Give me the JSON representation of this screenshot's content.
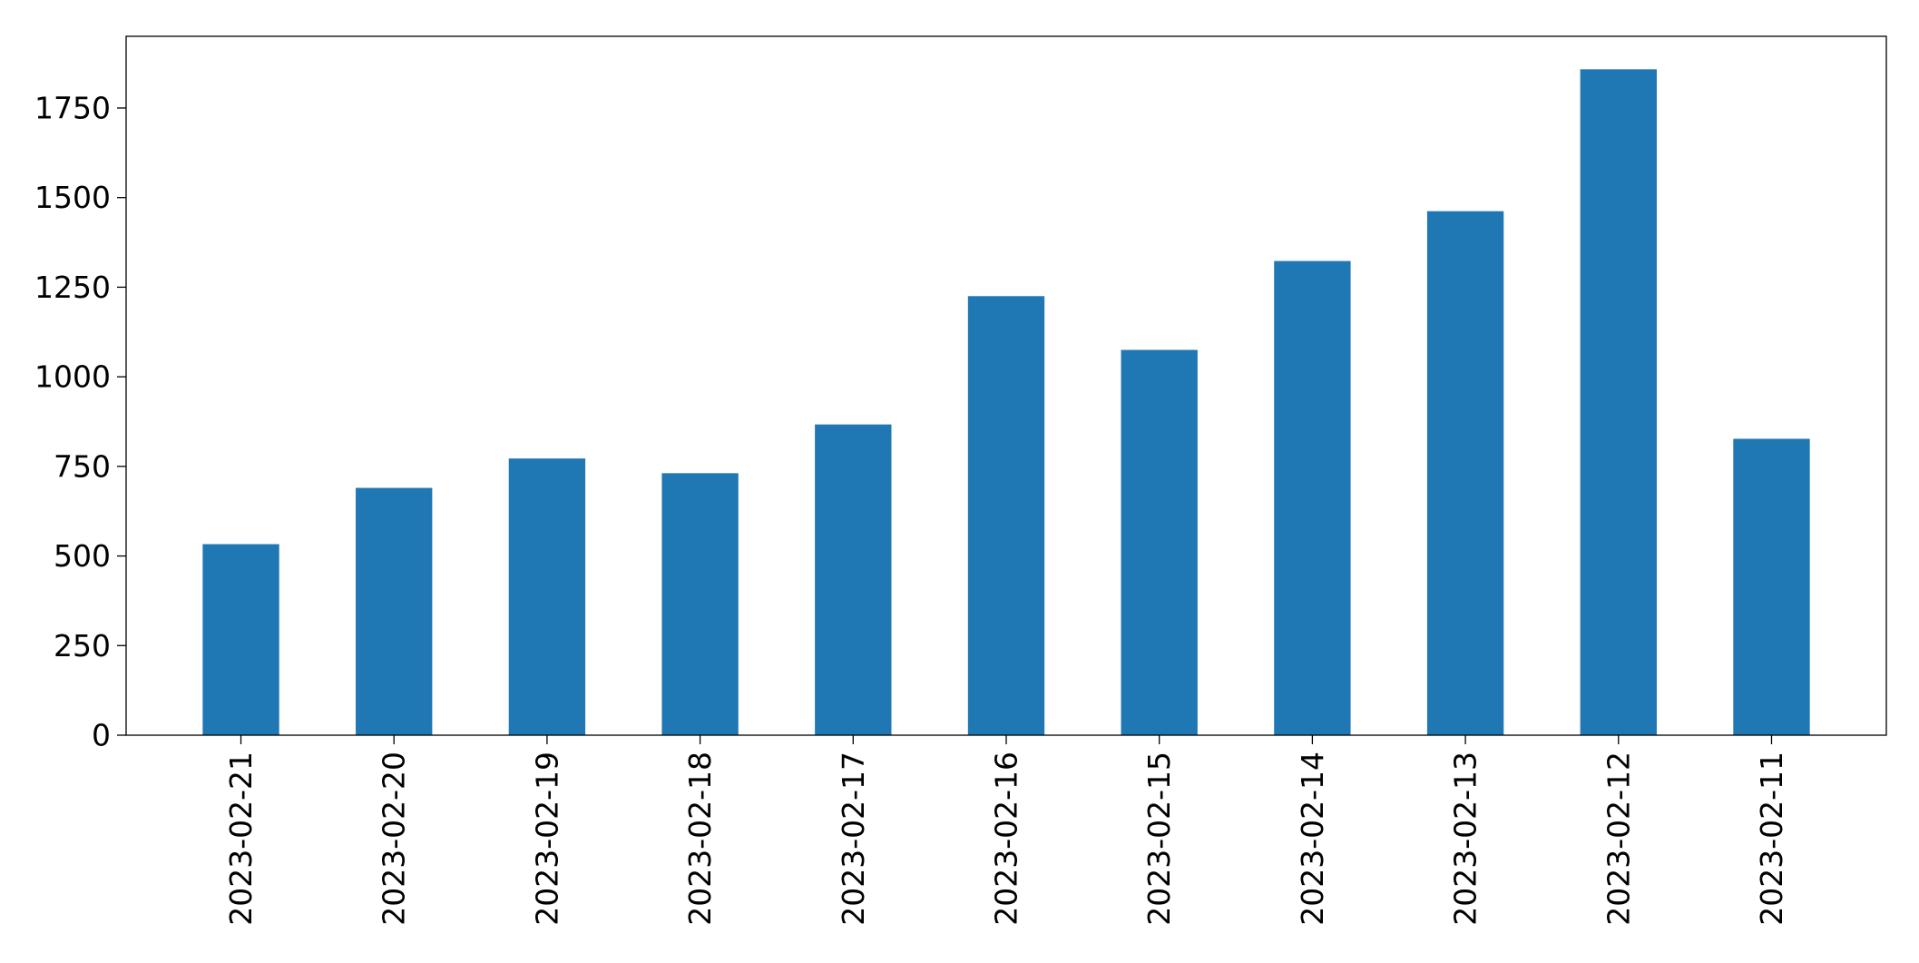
{
  "chart_data": {
    "type": "bar",
    "categories": [
      "2023-02-21",
      "2023-02-20",
      "2023-02-19",
      "2023-02-18",
      "2023-02-17",
      "2023-02-16",
      "2023-02-15",
      "2023-02-14",
      "2023-02-13",
      "2023-02-12",
      "2023-02-11"
    ],
    "values": [
      533,
      690,
      772,
      731,
      867,
      1225,
      1075,
      1323,
      1462,
      1858,
      827
    ],
    "title": "",
    "xlabel": "",
    "ylabel": "",
    "ylim": [
      0,
      1950
    ],
    "yticks": [
      0,
      250,
      500,
      750,
      1000,
      1250,
      1500,
      1750
    ],
    "grid": false,
    "legend": "none",
    "bar_color": "#1f77b4"
  }
}
